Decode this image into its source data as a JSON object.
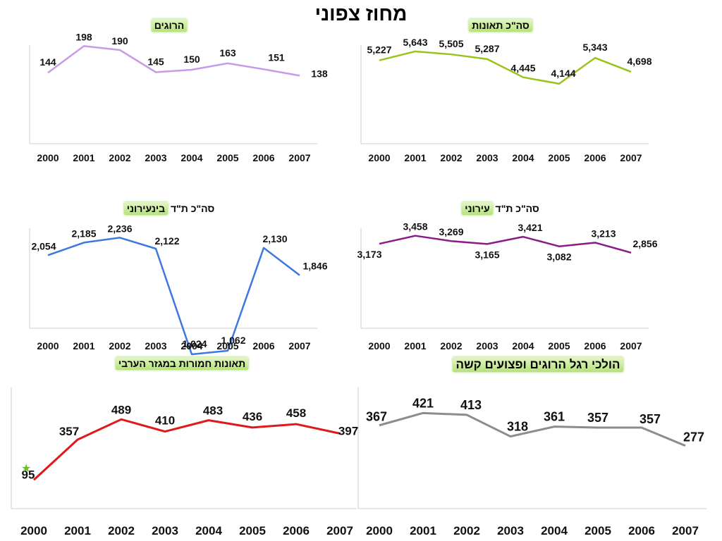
{
  "page_title": "מחוז צפוני",
  "charts": [
    {
      "id": "fatalities",
      "title_highlight": "הרוגים",
      "title_prefix": "",
      "color": "#c79be8",
      "chart_data": {
        "type": "line",
        "categories": [
          "2000",
          "2001",
          "2002",
          "2003",
          "2004",
          "2005",
          "2006",
          "2007"
        ],
        "values": [
          144,
          198,
          190,
          145,
          150,
          163,
          151,
          138
        ],
        "value_labels": [
          "144",
          "198",
          "190",
          "145",
          "150",
          "163",
          "151",
          "138"
        ],
        "ylim": [
          0,
          200
        ],
        "grid": false
      }
    },
    {
      "id": "total-accidents",
      "title_highlight": "סה\"כ תאונות",
      "title_prefix": "",
      "color": "#9bc31c",
      "chart_data": {
        "type": "line",
        "categories": [
          "2000",
          "2001",
          "2002",
          "2003",
          "2004",
          "2005",
          "2006",
          "2007"
        ],
        "values": [
          5227,
          5643,
          5505,
          5287,
          4445,
          4144,
          5343,
          4698
        ],
        "value_labels": [
          "5,227",
          "5,643",
          "5,505",
          "5,287",
          "4,445",
          "4,144",
          "5,343",
          "4,698"
        ],
        "ylim": [
          0,
          6000
        ],
        "grid": false
      }
    },
    {
      "id": "interurban-injury-accidents",
      "title_highlight": "בינעירוני",
      "title_prefix": "סה\"כ ת\"ד ",
      "color": "#3d78de",
      "chart_data": {
        "type": "line",
        "categories": [
          "2000",
          "2001",
          "2002",
          "2003",
          "2004",
          "2005",
          "2006",
          "2007"
        ],
        "values": [
          2054,
          2185,
          2236,
          2122,
          1024,
          1062,
          2130,
          1846
        ],
        "value_labels": [
          "2,054",
          "2,185",
          "2,236",
          "2,122",
          "1,024",
          "1,062",
          "2,130",
          "1,846"
        ],
        "ylim": [
          0,
          2400
        ],
        "grid": false
      }
    },
    {
      "id": "urban-injury-accidents",
      "title_highlight": "עירוני",
      "title_prefix": "סה\"כ ת\"ד ",
      "color": "#8b1a8b",
      "chart_data": {
        "type": "line",
        "categories": [
          "2000",
          "2001",
          "2002",
          "2003",
          "2004",
          "2005",
          "2006",
          "2007"
        ],
        "values": [
          3173,
          3458,
          3269,
          3165,
          3421,
          3082,
          3213,
          2856
        ],
        "value_labels": [
          "3,173",
          "3,458",
          "3,269",
          "3,165",
          "3,421",
          "3,082",
          "3,213",
          "2,856"
        ],
        "ylim": [
          0,
          4000
        ],
        "grid": false
      }
    },
    {
      "id": "arab-sector-severe-accidents",
      "title_highlight": "תאונות חמורות במגזר הערבי",
      "title_prefix": "",
      "color": "#e0181b",
      "chart_data": {
        "type": "line",
        "categories": [
          "2000",
          "2001",
          "2002",
          "2003",
          "2004",
          "2005",
          "2006",
          "2007"
        ],
        "values": [
          95,
          357,
          489,
          410,
          483,
          436,
          458,
          397
        ],
        "value_labels": [
          "95",
          "357",
          "489",
          "410",
          "483",
          "436",
          "458",
          "397"
        ],
        "ylim": [
          0,
          550
        ],
        "grid": false
      }
    },
    {
      "id": "pedestrians-killed-severely-injured",
      "title_highlight": "הולכי רגל הרוגים ופצועים קשה",
      "title_prefix": "",
      "color": "#8c8c8c",
      "chart_data": {
        "type": "line",
        "categories": [
          "2000",
          "2001",
          "2002",
          "2003",
          "2004",
          "2005",
          "2006",
          "2007"
        ],
        "values": [
          367,
          421,
          413,
          318,
          361,
          357,
          357,
          277
        ],
        "value_labels": [
          "367",
          "421",
          "413",
          "318",
          "361",
          "357",
          "357",
          "277"
        ],
        "ylim": [
          0,
          450
        ],
        "grid": false
      }
    }
  ]
}
